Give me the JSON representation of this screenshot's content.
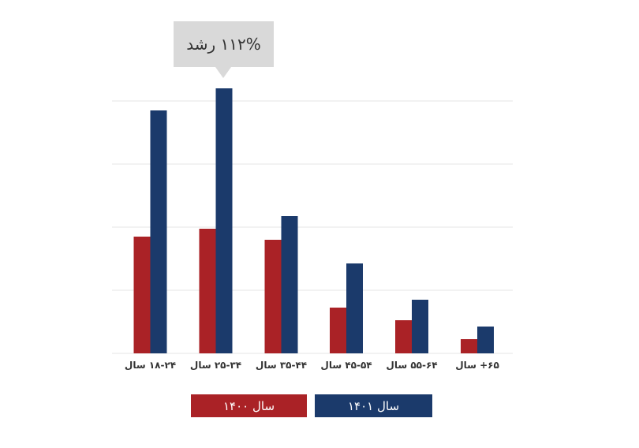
{
  "chart_data": {
    "type": "bar",
    "categories": [
      "۱۸-۲۴ سال",
      "۲۵-۳۴ سال",
      "۳۵-۴۴ سال",
      "۴۵-۵۴ سال",
      "۵۵-۶۴ سال",
      "۶۵+ سال"
    ],
    "series": [
      {
        "name": "سال ۱۴۰۰",
        "color": "#aa2226",
        "values": [
          37,
          39.5,
          36,
          14.5,
          10.5,
          4.5
        ]
      },
      {
        "name": "سال ۱۴۰۱",
        "color": "#1b3a6b",
        "values": [
          77,
          84,
          43.5,
          28.5,
          17,
          8.5
        ]
      }
    ],
    "ylim": [
      0,
      100
    ],
    "grid": true,
    "legend": "bottom",
    "annotation": {
      "text": "۱۱۲% رشد",
      "category_index": 1
    }
  }
}
